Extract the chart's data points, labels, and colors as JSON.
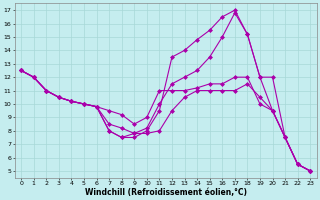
{
  "xlabel": "Windchill (Refroidissement éolien,°C)",
  "background_color": "#c5edef",
  "line_color": "#aa00aa",
  "xlim": [
    -0.5,
    23.5
  ],
  "ylim": [
    4.5,
    17.5
  ],
  "xticks": [
    0,
    1,
    2,
    3,
    4,
    5,
    6,
    7,
    8,
    9,
    10,
    11,
    12,
    13,
    14,
    15,
    16,
    17,
    18,
    19,
    20,
    21,
    22,
    23
  ],
  "yticks": [
    5,
    6,
    7,
    8,
    9,
    10,
    11,
    12,
    13,
    14,
    15,
    16,
    17
  ],
  "series": [
    {
      "x": [
        0,
        1,
        2,
        3,
        4,
        5,
        6,
        7,
        8,
        9,
        10,
        11,
        12,
        13,
        14,
        15,
        16,
        17,
        18,
        19,
        20,
        21,
        22,
        23
      ],
      "y": [
        12.5,
        12.0,
        11.0,
        10.5,
        10.2,
        10.0,
        9.8,
        9.5,
        9.2,
        8.5,
        9.0,
        11.0,
        11.0,
        11.0,
        11.2,
        11.5,
        11.5,
        12.0,
        12.0,
        10.0,
        9.5,
        7.5,
        5.5,
        5.0
      ]
    },
    {
      "x": [
        0,
        1,
        2,
        3,
        4,
        5,
        6,
        7,
        8,
        9,
        10,
        11,
        12,
        13,
        14,
        15,
        16,
        17,
        18,
        19,
        20,
        21,
        22,
        23
      ],
      "y": [
        12.5,
        12.0,
        11.0,
        10.5,
        10.2,
        10.0,
        9.8,
        8.0,
        7.5,
        7.5,
        8.0,
        9.5,
        13.5,
        14.0,
        14.8,
        15.5,
        16.5,
        17.0,
        15.2,
        12.0,
        12.0,
        7.5,
        5.5,
        5.0
      ]
    },
    {
      "x": [
        0,
        1,
        2,
        3,
        4,
        5,
        6,
        7,
        8,
        9,
        10,
        11,
        12,
        13,
        14,
        15,
        16,
        17,
        18,
        19,
        20,
        21,
        22,
        23
      ],
      "y": [
        12.5,
        12.0,
        11.0,
        10.5,
        10.2,
        10.0,
        9.8,
        8.0,
        7.5,
        7.8,
        8.2,
        10.0,
        11.5,
        12.0,
        12.5,
        13.5,
        15.0,
        16.8,
        15.2,
        12.0,
        9.5,
        7.5,
        5.5,
        5.0
      ]
    },
    {
      "x": [
        0,
        1,
        2,
        3,
        4,
        5,
        6,
        7,
        8,
        9,
        10,
        11,
        12,
        13,
        14,
        15,
        16,
        17,
        18,
        19,
        20,
        21,
        22,
        23
      ],
      "y": [
        12.5,
        12.0,
        11.0,
        10.5,
        10.2,
        10.0,
        9.8,
        8.5,
        8.2,
        7.8,
        7.8,
        8.0,
        9.5,
        10.5,
        11.0,
        11.0,
        11.0,
        11.0,
        11.5,
        10.5,
        9.5,
        7.5,
        5.5,
        5.0
      ]
    }
  ],
  "marker": "D",
  "markersize": 2.0,
  "linewidth": 0.8,
  "grid_color": "#a8d8d8",
  "tick_fontsize": 4.5,
  "xlabel_fontsize": 5.5
}
